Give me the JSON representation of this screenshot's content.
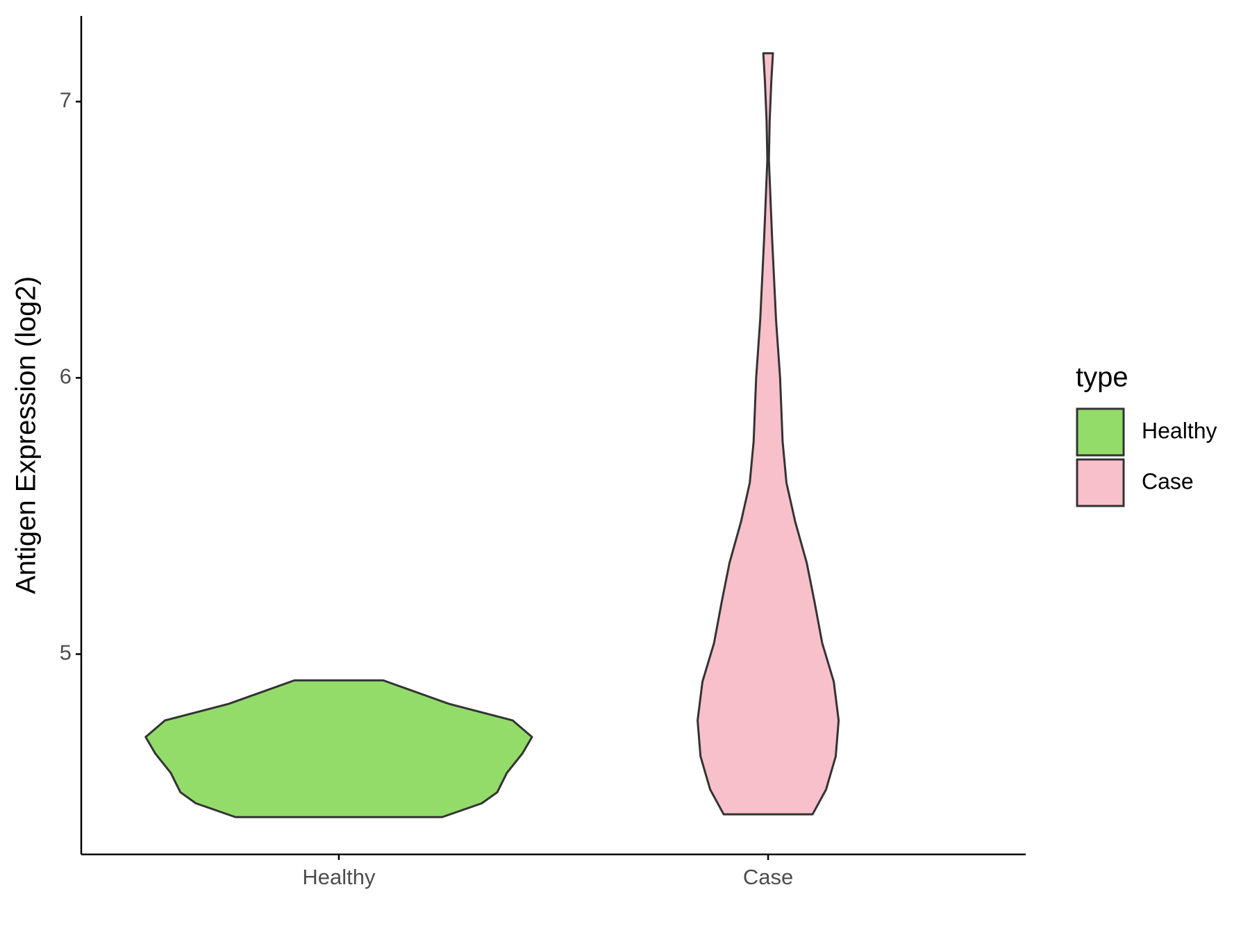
{
  "chart_data": {
    "type": "violin",
    "y_label": "Antigen Expression (log2)",
    "categories": [
      "Healthy",
      "Case"
    ],
    "legend_title": "type",
    "legend_position": "right",
    "ylim": [
      4.275,
      7.31
    ],
    "yticks": [
      5,
      6,
      7
    ],
    "grid": false,
    "series": [
      {
        "name": "Healthy",
        "color": "#93dc6a",
        "y": [
          4.41,
          4.46,
          4.5,
          4.57,
          4.64,
          4.7,
          4.76,
          4.82,
          4.87,
          4.905
        ],
        "widths": [
          0.535,
          0.74,
          0.82,
          0.87,
          0.95,
          1.0,
          0.9,
          0.57,
          0.37,
          0.23
        ]
      },
      {
        "name": "Case",
        "color": "#f7c0cb",
        "y": [
          4.42,
          4.51,
          4.63,
          4.76,
          4.9,
          5.04,
          5.19,
          5.33,
          5.48,
          5.62,
          5.77,
          6.0,
          6.21,
          6.5,
          6.79,
          6.93,
          7.08,
          7.175
        ],
        "widths": [
          0.23,
          0.3,
          0.35,
          0.365,
          0.34,
          0.28,
          0.24,
          0.2,
          0.14,
          0.095,
          0.075,
          0.062,
          0.041,
          0.021,
          0.004,
          0.008,
          0.017,
          0.025
        ]
      }
    ]
  }
}
